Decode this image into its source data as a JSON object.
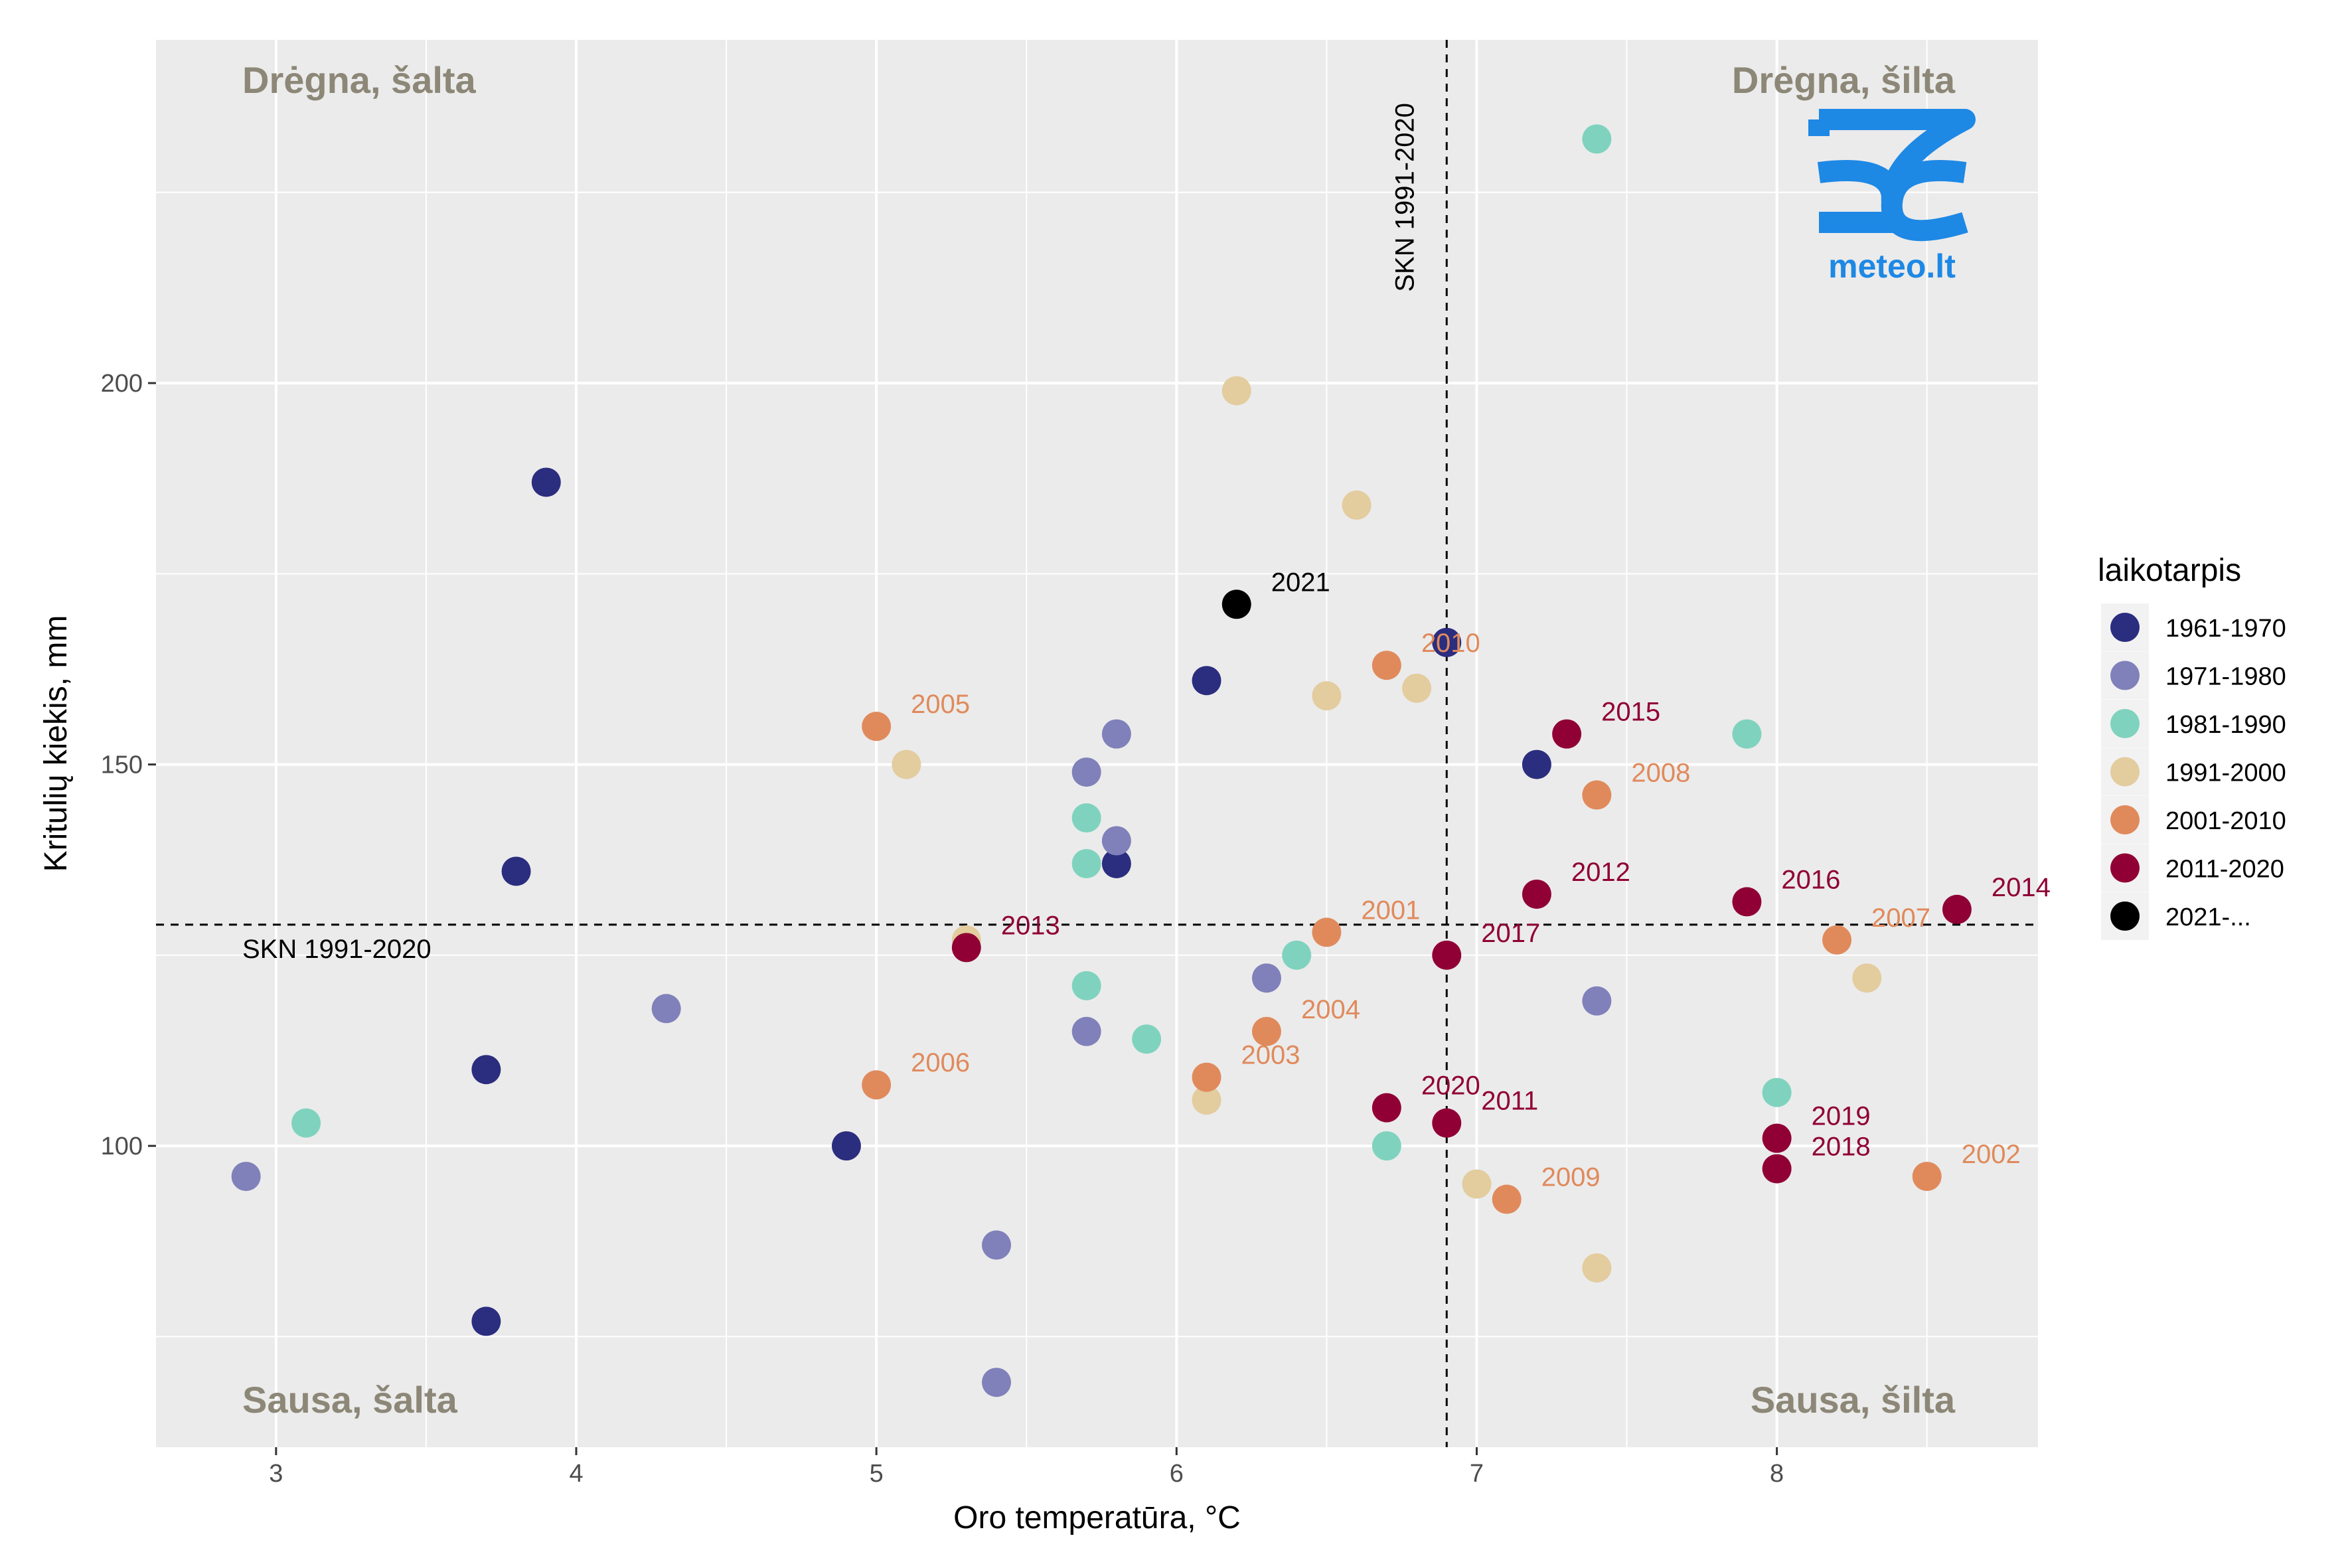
{
  "chart_data": {
    "type": "scatter",
    "xlabel": "Oro temperatūra, °C",
    "ylabel": "Kritulių kiekis, mm",
    "xlim": [
      2.6,
      8.87
    ],
    "ylim": [
      60.5,
      245
    ],
    "x_ticks": [
      3,
      4,
      5,
      6,
      7,
      8
    ],
    "y_ticks": [
      100,
      150,
      200
    ],
    "grid": true,
    "quadrant_labels": {
      "top_left": "Drėgna, šalta",
      "top_right": "Drėgna, šilta",
      "bottom_left": "Sausa, šalta",
      "bottom_right": "Sausa, šilta"
    },
    "reference_lines": {
      "x": 6.9,
      "y": 129,
      "x_label": "SKN 1991-2020",
      "y_label": "SKN 1991-2020"
    },
    "legend": {
      "title": "laikotarpis",
      "placement": "right",
      "entries": [
        {
          "name": "1961-1970",
          "color": "#2b2d7f"
        },
        {
          "name": "1971-1980",
          "color": "#8080ba"
        },
        {
          "name": "1981-1990",
          "color": "#7fd3be"
        },
        {
          "name": "1991-2000",
          "color": "#e3cc9e"
        },
        {
          "name": "2001-2010",
          "color": "#e08a5c"
        },
        {
          "name": "2011-2020",
          "color": "#900035"
        },
        {
          "name": "2021-...",
          "color": "#000000"
        }
      ]
    },
    "series": [
      {
        "name": "1961-1970",
        "points": [
          [
            3.9,
            187
          ],
          [
            3.8,
            136
          ],
          [
            3.7,
            110
          ],
          [
            3.7,
            77
          ],
          [
            4.9,
            100
          ],
          [
            6.1,
            161
          ],
          [
            5.8,
            137
          ],
          [
            6.9,
            166
          ],
          [
            7.2,
            150
          ]
        ]
      },
      {
        "name": "1971-1980",
        "points": [
          [
            2.9,
            96
          ],
          [
            4.3,
            118
          ],
          [
            5.4,
            87
          ],
          [
            5.4,
            69
          ],
          [
            5.7,
            149
          ],
          [
            5.8,
            154
          ],
          [
            5.8,
            140
          ],
          [
            5.7,
            115
          ],
          [
            6.3,
            122
          ],
          [
            7.4,
            119
          ]
        ]
      },
      {
        "name": "1981-1990",
        "points": [
          [
            3.1,
            103
          ],
          [
            5.7,
            143
          ],
          [
            5.7,
            137
          ],
          [
            5.7,
            121
          ],
          [
            5.9,
            114
          ],
          [
            6.4,
            125
          ],
          [
            6.7,
            100
          ],
          [
            7.4,
            232
          ],
          [
            7.9,
            154
          ],
          [
            8.0,
            107
          ]
        ]
      },
      {
        "name": "1991-2000",
        "points": [
          [
            5.1,
            150
          ],
          [
            5.3,
            127
          ],
          [
            6.2,
            199
          ],
          [
            6.1,
            106
          ],
          [
            6.5,
            159
          ],
          [
            6.6,
            184
          ],
          [
            6.8,
            160
          ],
          [
            7.0,
            95
          ],
          [
            7.4,
            84
          ],
          [
            8.3,
            122
          ]
        ]
      },
      {
        "name": "2001-2010",
        "points": [
          [
            6.5,
            128,
            "2001"
          ],
          [
            8.5,
            96,
            "2002"
          ],
          [
            6.1,
            109,
            "2003"
          ],
          [
            6.3,
            115,
            "2004"
          ],
          [
            5.0,
            155,
            "2005"
          ],
          [
            5.0,
            108,
            "2006"
          ],
          [
            8.2,
            127,
            "2007"
          ],
          [
            7.4,
            146,
            "2008"
          ],
          [
            7.1,
            93,
            "2009"
          ],
          [
            6.7,
            163,
            "2010"
          ]
        ]
      },
      {
        "name": "2011-2020",
        "points": [
          [
            6.9,
            103,
            "2011"
          ],
          [
            7.2,
            133,
            "2012"
          ],
          [
            5.3,
            126,
            "2013"
          ],
          [
            8.6,
            131,
            "2014"
          ],
          [
            7.3,
            154,
            "2015"
          ],
          [
            7.9,
            132,
            "2016"
          ],
          [
            6.9,
            125,
            "2017"
          ],
          [
            8.0,
            97,
            "2018"
          ],
          [
            8.0,
            101,
            "2019"
          ],
          [
            6.7,
            105,
            "2020"
          ]
        ]
      },
      {
        "name": "2021-...",
        "points": [
          [
            6.2,
            171,
            "2021"
          ]
        ]
      }
    ]
  },
  "logo": {
    "text": "meteo.lt",
    "color": "#1e88e5"
  }
}
